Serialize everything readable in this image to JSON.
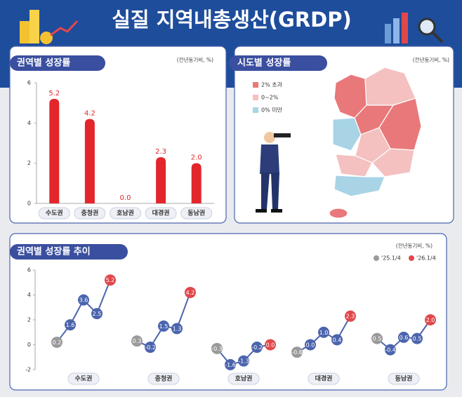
{
  "header": {
    "title": "실질 지역내총생산(GRDP)"
  },
  "chart_data": [
    {
      "type": "bar",
      "title": "권역별 성장률",
      "unit": "(전년동기비, %)",
      "categories": [
        "수도권",
        "충청권",
        "호남권",
        "대경권",
        "동남권"
      ],
      "values": [
        5.2,
        4.2,
        0,
        2.3,
        2.0
      ],
      "value_labels": [
        "5.2",
        "4.2",
        "0.0",
        "2.3",
        "2.0"
      ],
      "color": "#e3262b",
      "ylim": [
        0,
        6
      ],
      "yticks": [
        0,
        2,
        4,
        6
      ]
    },
    {
      "type": "line",
      "title": "권역별 성장률 추이",
      "unit": "(전년동기비, %)",
      "categories": [
        "수도권",
        "충청권",
        "호남권",
        "대경권",
        "동남권"
      ],
      "legend": [
        {
          "name": "'25.1/4",
          "color": "#9a9a9a"
        },
        {
          "name": "'26.1/4",
          "color": "#e2474b"
        }
      ],
      "mid_color": "#4b64ad",
      "groups": [
        {
          "values": [
            0.2,
            1.6,
            3.6,
            2.5,
            5.2
          ],
          "value_labels": [
            "0.2",
            "1.6",
            "3.6",
            "2.5",
            "5.2"
          ]
        },
        {
          "values": [
            0.3,
            -0.2,
            1.5,
            1.3,
            4.2
          ],
          "value_labels": [
            "0.3",
            "-0.2",
            "1.5",
            "1.3",
            "4.2"
          ]
        },
        {
          "values": [
            -0.3,
            -1.6,
            -1.3,
            -0.2,
            0
          ],
          "value_labels": [
            "-0.3",
            "-1.6",
            "-1.3",
            "-0.2",
            "0.0"
          ]
        },
        {
          "values": [
            -0.6,
            0,
            1.0,
            0.4,
            2.3
          ],
          "value_labels": [
            "-0.6",
            "0.0",
            "1.0",
            "0.4",
            "2.3"
          ]
        },
        {
          "values": [
            0.5,
            -0.4,
            0.6,
            0.5,
            2.0
          ],
          "value_labels": [
            "0.5",
            "-0.4",
            "0.6",
            "0.5",
            "2.0"
          ]
        }
      ],
      "ylim": [
        -2,
        6
      ],
      "yticks": [
        -2,
        0,
        2,
        4,
        6
      ]
    }
  ],
  "map_panel": {
    "title": "시도별 성장률",
    "unit": "(전년동기비, %)",
    "legend": [
      {
        "label": "2% 초과",
        "color": "#e8787a"
      },
      {
        "label": "0~2%",
        "color": "#f4c0c0"
      },
      {
        "label": "0% 미만",
        "color": "#a8d4e6"
      }
    ]
  }
}
